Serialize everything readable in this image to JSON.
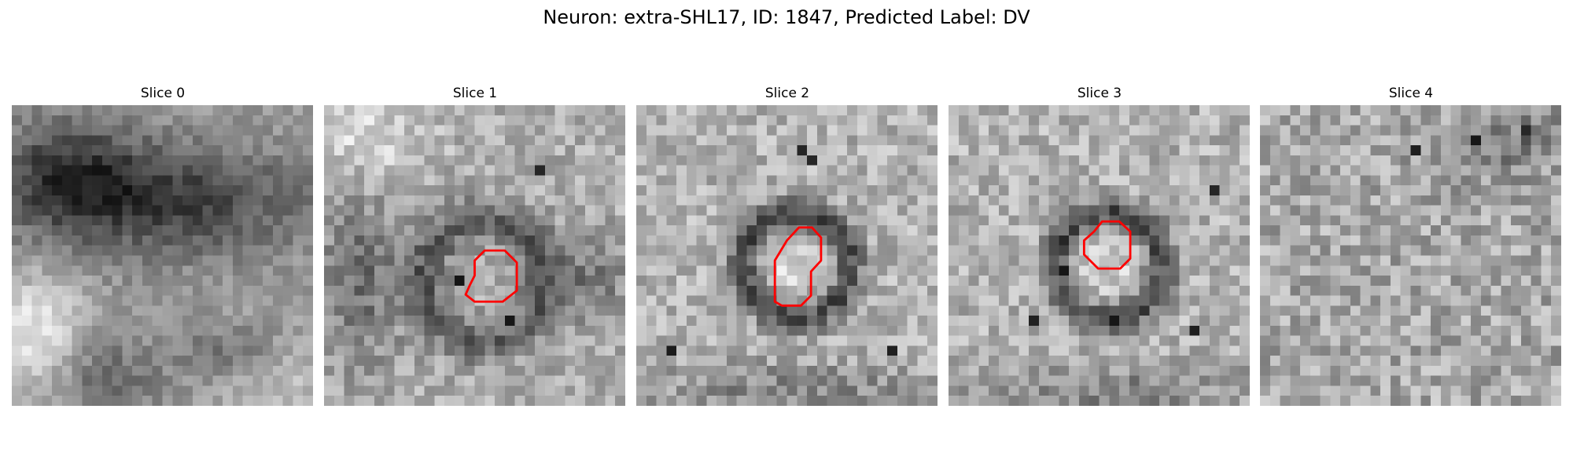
{
  "figure": {
    "title": "Neuron: extra-SHL17, ID: 1847, Predicted Label: DV"
  },
  "panels": [
    {
      "title": "Slice 0",
      "style": "dark-top-blob",
      "contour": [],
      "dark_spots": []
    },
    {
      "title": "Slice 1",
      "style": "medium-ring",
      "contour": [
        [
          16.0,
          14.5
        ],
        [
          18.0,
          14.5
        ],
        [
          19.2,
          15.7
        ],
        [
          19.2,
          18.5
        ],
        [
          17.8,
          19.6
        ],
        [
          15.0,
          19.6
        ],
        [
          14.1,
          18.9
        ],
        [
          14.5,
          18.0
        ],
        [
          15.0,
          17.0
        ],
        [
          15.0,
          15.5
        ]
      ],
      "dark_spots": [
        [
          21,
          6
        ],
        [
          18,
          21
        ],
        [
          13,
          17
        ]
      ]
    },
    {
      "title": "Slice 2",
      "style": "dark-ring",
      "contour": [
        [
          16.2,
          12.2
        ],
        [
          17.5,
          12.2
        ],
        [
          18.4,
          13.2
        ],
        [
          18.4,
          15.5
        ],
        [
          17.4,
          16.6
        ],
        [
          17.4,
          19.0
        ],
        [
          16.4,
          20.0
        ],
        [
          14.5,
          20.0
        ],
        [
          13.8,
          19.6
        ],
        [
          13.8,
          15.5
        ],
        [
          15.0,
          13.5
        ]
      ],
      "dark_spots": [
        [
          17,
          5
        ],
        [
          16,
          4
        ],
        [
          25,
          24
        ],
        [
          3,
          24
        ]
      ]
    },
    {
      "title": "Slice 3",
      "style": "dark-ring",
      "contour": [
        [
          15.3,
          11.6
        ],
        [
          17.0,
          11.6
        ],
        [
          18.1,
          12.6
        ],
        [
          18.1,
          15.3
        ],
        [
          17.1,
          16.3
        ],
        [
          14.9,
          16.3
        ],
        [
          13.5,
          14.9
        ],
        [
          13.5,
          13.5
        ],
        [
          14.5,
          12.6
        ]
      ],
      "dark_spots": [
        [
          11,
          16
        ],
        [
          16,
          21
        ],
        [
          24,
          22
        ],
        [
          26,
          8
        ],
        [
          8,
          21
        ]
      ]
    },
    {
      "title": "Slice 4",
      "style": "noisy",
      "contour": [],
      "dark_spots": [
        [
          21,
          3
        ],
        [
          26,
          2
        ],
        [
          15,
          4
        ]
      ]
    }
  ],
  "colors": {
    "contour": "#ff0000",
    "background": "#ffffff"
  }
}
